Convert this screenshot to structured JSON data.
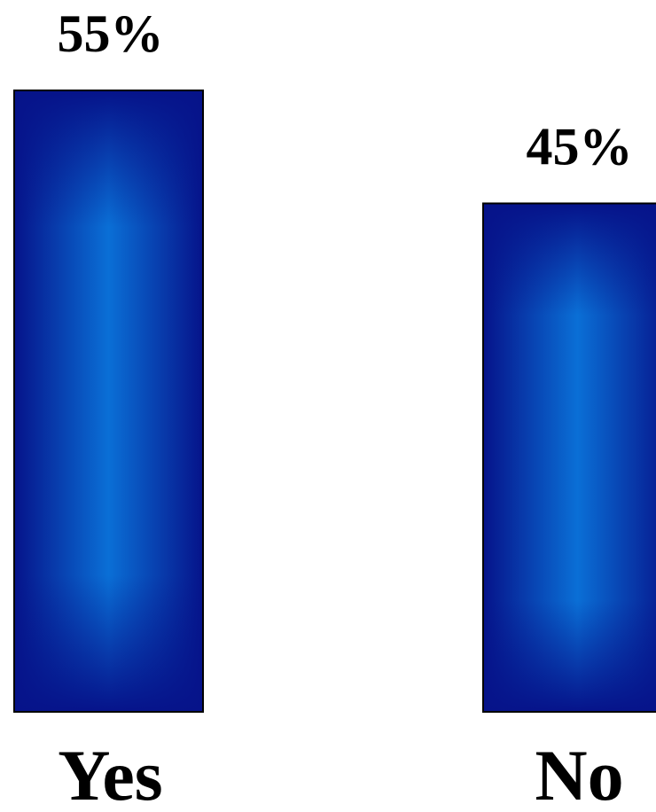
{
  "chart_data": {
    "type": "bar",
    "categories": [
      "Yes",
      "No"
    ],
    "values": [
      55,
      45
    ],
    "value_labels": [
      "55%",
      "45%"
    ],
    "title": "",
    "xlabel": "",
    "ylabel": "",
    "ylim": [
      0,
      55
    ],
    "grid": false,
    "legend": "none",
    "colors": {
      "bar_dark": "#06138a",
      "bar_light": "#0a6fd6",
      "outline": "#000000",
      "text": "#000000"
    }
  }
}
